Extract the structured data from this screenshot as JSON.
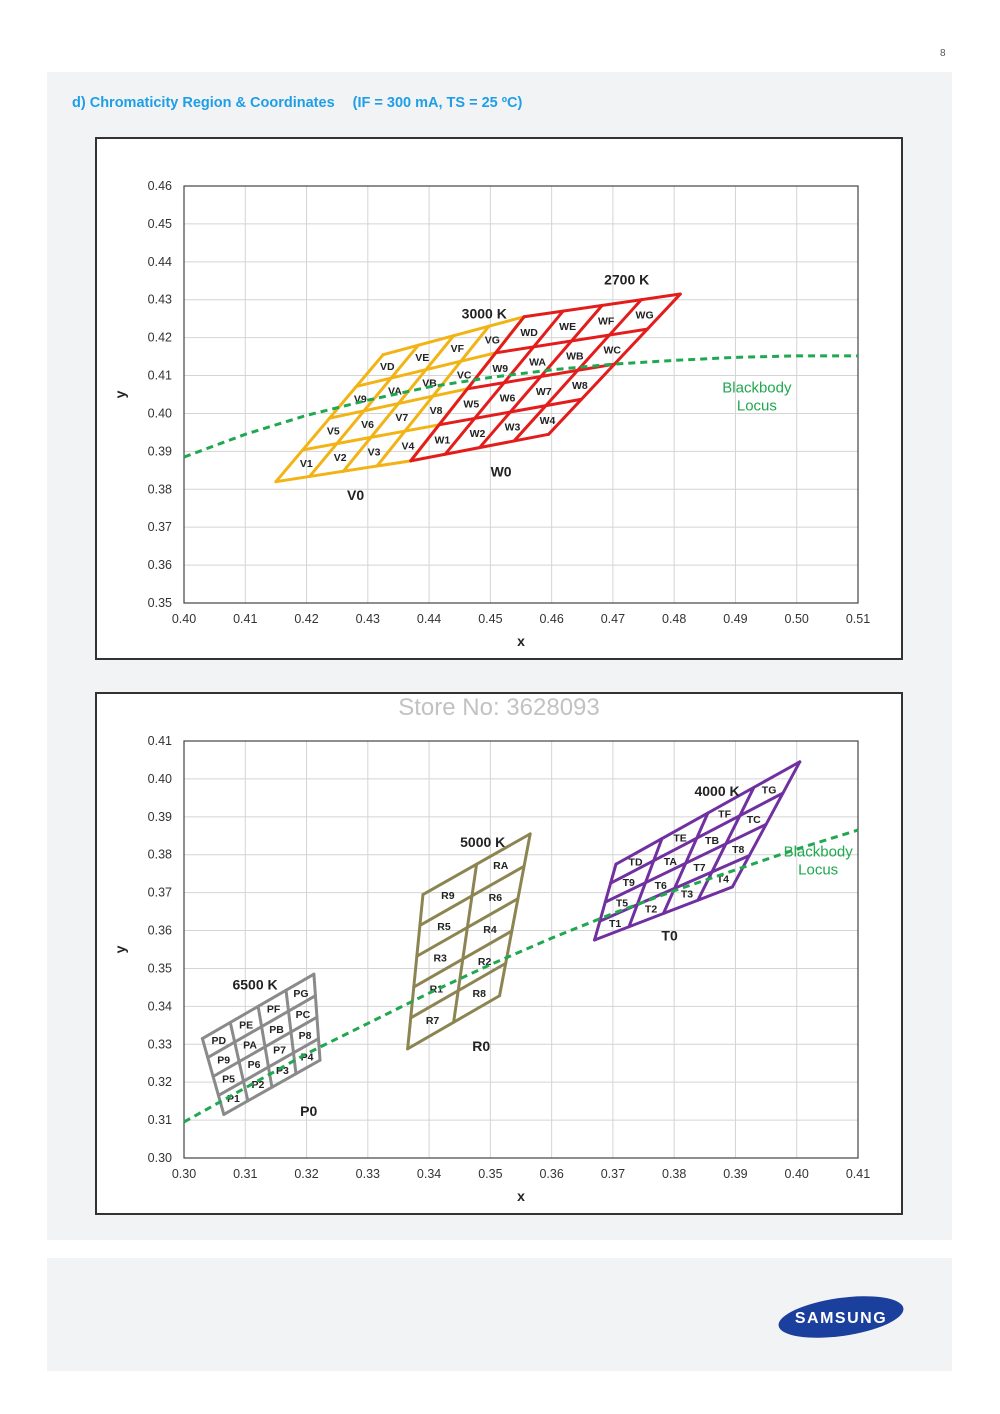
{
  "page_number": "8",
  "heading": {
    "label": "d)",
    "title": "Chromaticity Region & Coordinates",
    "conditions": "(IF = 300 mA, TS = 25 ºC)"
  },
  "watermark": "Store No: 3628093",
  "logo_text": "SAMSUNG",
  "colors": {
    "heading": "#1e9ee6",
    "yellow_region": "#f2b315",
    "red_region": "#e31c1c",
    "gray_region": "#8a8a8a",
    "olive_region": "#8c8552",
    "purple_region": "#7030a0",
    "locus": "#1fa84f",
    "logo": "#1a3f9c"
  },
  "chart_data": [
    {
      "type": "scatter",
      "title": "",
      "xlabel": "x",
      "ylabel": "y",
      "xlim": [
        0.4,
        0.51
      ],
      "ylim": [
        0.35,
        0.46
      ],
      "grid": true,
      "xticks": [
        "0.40",
        "0.41",
        "0.42",
        "0.43",
        "0.44",
        "0.45",
        "0.46",
        "0.47",
        "0.48",
        "0.49",
        "0.50",
        "0.51"
      ],
      "yticks": [
        "0.35",
        "0.36",
        "0.37",
        "0.38",
        "0.39",
        "0.40",
        "0.41",
        "0.42",
        "0.43",
        "0.44",
        "0.45",
        "0.46"
      ],
      "regions": [
        {
          "name": "3000 K",
          "group_label": "V0",
          "color": "#f2b315",
          "corners": {
            "bl": [
              0.415,
              0.382
            ],
            "br": [
              0.437,
              0.3875
            ],
            "tl": [
              0.4325,
              0.4155
            ],
            "tr": [
              0.4555,
              0.4255
            ]
          },
          "bin_rows": [
            [
              "V1",
              "V2",
              "V3",
              "V4"
            ],
            [
              "V5",
              "V6",
              "V7",
              "V8"
            ],
            [
              "V9",
              "VA",
              "VB",
              "VC"
            ],
            [
              "VD",
              "VE",
              "VF",
              "VG"
            ]
          ]
        },
        {
          "name": "2700 K",
          "group_label": "W0",
          "color": "#e31c1c",
          "corners": {
            "bl": [
              0.437,
              0.3875
            ],
            "br": [
              0.4595,
              0.3945
            ],
            "tl": [
              0.4555,
              0.4255
            ],
            "tr": [
              0.481,
              0.4315
            ]
          },
          "bin_rows": [
            [
              "W1",
              "W2",
              "W3",
              "W4"
            ],
            [
              "W5",
              "W6",
              "W7",
              "W8"
            ],
            [
              "W9",
              "WA",
              "WB",
              "WC"
            ],
            [
              "WD",
              "WE",
              "WF",
              "WG"
            ]
          ]
        }
      ],
      "locus": {
        "name": "Blackbody Locus",
        "x": [
          0.4,
          0.41,
          0.42,
          0.43,
          0.44,
          0.45,
          0.46,
          0.47,
          0.48,
          0.49,
          0.5,
          0.51
        ],
        "y": [
          0.3885,
          0.3945,
          0.3995,
          0.4035,
          0.407,
          0.4095,
          0.4115,
          0.413,
          0.414,
          0.4148,
          0.4152,
          0.4152
        ]
      }
    },
    {
      "type": "scatter",
      "title": "",
      "xlabel": "x",
      "ylabel": "y",
      "xlim": [
        0.3,
        0.41
      ],
      "ylim": [
        0.3,
        0.41
      ],
      "grid": true,
      "xticks": [
        "0.30",
        "0.31",
        "0.32",
        "0.33",
        "0.34",
        "0.35",
        "0.36",
        "0.37",
        "0.38",
        "0.39",
        "0.40",
        "0.41"
      ],
      "yticks": [
        "0.30",
        "0.31",
        "0.32",
        "0.33",
        "0.34",
        "0.35",
        "0.36",
        "0.37",
        "0.38",
        "0.39",
        "0.40",
        "0.41"
      ],
      "regions": [
        {
          "name": "6500 K",
          "group_label": "P0",
          "color": "#8a8a8a",
          "corners": {
            "bl": [
              0.3065,
              0.3115
            ],
            "br": [
              0.3222,
              0.3258
            ],
            "tl": [
              0.303,
              0.3315
            ],
            "tr": [
              0.3212,
              0.3485
            ]
          },
          "bin_rows": [
            [
              "P1",
              "P2",
              "P3",
              "P4"
            ],
            [
              "P5",
              "P6",
              "P7",
              "P8"
            ],
            [
              "P9",
              "PA",
              "PB",
              "PC"
            ],
            [
              "PD",
              "PE",
              "PF",
              "PG"
            ]
          ]
        },
        {
          "name": "5000 K",
          "group_label": "R0",
          "color": "#8c8552",
          "corners": {
            "bl": [
              0.3365,
              0.3288
            ],
            "br": [
              0.3515,
              0.3428
            ],
            "tl": [
              0.339,
              0.3695
            ],
            "tr": [
              0.3565,
              0.3855
            ]
          },
          "bin_rows": [
            [
              "R7",
              "R8"
            ],
            [
              "R1",
              "R2"
            ],
            [
              "R3",
              "R4"
            ],
            [
              "R5",
              "R6"
            ],
            [
              "R9",
              "RA"
            ]
          ]
        },
        {
          "name": "4000 K",
          "group_label": "T0",
          "color": "#7030a0",
          "corners": {
            "bl": [
              0.367,
              0.3575
            ],
            "br": [
              0.3895,
              0.3715
            ],
            "tl": [
              0.3705,
              0.3775
            ],
            "tr": [
              0.4005,
              0.4045
            ]
          },
          "bin_rows": [
            [
              "T1",
              "T2",
              "T3",
              "T4"
            ],
            [
              "T5",
              "T6",
              "T7",
              "T8"
            ],
            [
              "T9",
              "TA",
              "TB",
              "TC"
            ],
            [
              "TD",
              "TE",
              "TF",
              "TG"
            ]
          ]
        }
      ],
      "locus": {
        "name": "Blackbody Locus",
        "x": [
          0.3,
          0.31,
          0.32,
          0.33,
          0.34,
          0.35,
          0.36,
          0.37,
          0.38,
          0.39,
          0.4,
          0.41
        ],
        "y": [
          0.3095,
          0.3185,
          0.3275,
          0.3355,
          0.3435,
          0.351,
          0.358,
          0.3645,
          0.3705,
          0.376,
          0.3815,
          0.3865
        ]
      }
    }
  ]
}
